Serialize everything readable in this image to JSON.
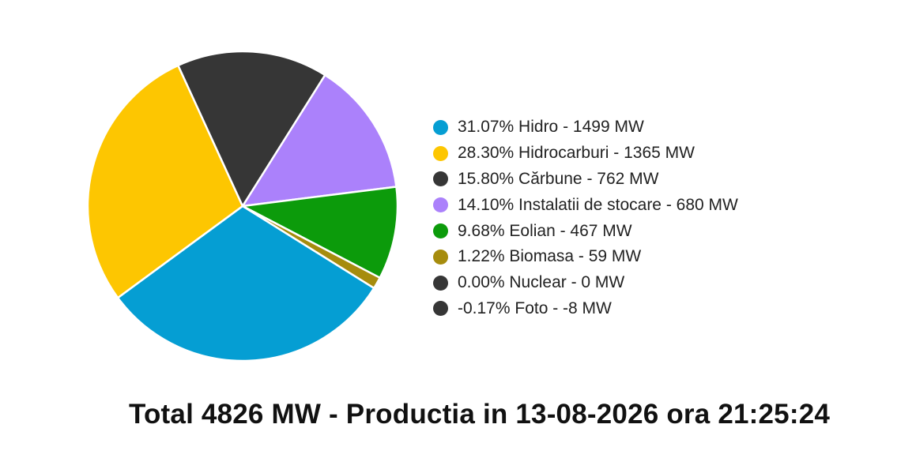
{
  "chart_data": {
    "type": "pie",
    "slices": [
      {
        "label": "31.07% Hidro - 1499 MW",
        "name": "Hidro",
        "percent": 31.07,
        "value": 1499,
        "color": "#059ed3"
      },
      {
        "label": "28.30% Hidrocarburi - 1365 MW",
        "name": "Hidrocarburi",
        "percent": 28.3,
        "value": 1365,
        "color": "#fdc601"
      },
      {
        "label": "15.80% Cărbune - 762 MW",
        "name": "Cărbune",
        "percent": 15.8,
        "value": 762,
        "color": "#363636"
      },
      {
        "label": "14.10% Instalatii de stocare - 680 MW",
        "name": "Instalatii de stocare",
        "percent": 14.1,
        "value": 680,
        "color": "#ab81fb"
      },
      {
        "label": "9.68% Eolian - 467 MW",
        "name": "Eolian",
        "percent": 9.68,
        "value": 467,
        "color": "#0c9b0b"
      },
      {
        "label": "1.22% Biomasa - 59 MW",
        "name": "Biomasa",
        "percent": 1.22,
        "value": 59,
        "color": "#a68c0d"
      },
      {
        "label": "0.00% Nuclear - 0 MW",
        "name": "Nuclear",
        "percent": 0.0,
        "value": 0,
        "color": "#363636"
      },
      {
        "label": "-0.17% Foto - -8 MW",
        "name": "Foto",
        "percent": -0.17,
        "value": -8,
        "color": "#363636"
      }
    ],
    "legend_position": "right",
    "footer": "Total 4826 MW - Productia in 13-08-2026 ora 21:25:24"
  }
}
